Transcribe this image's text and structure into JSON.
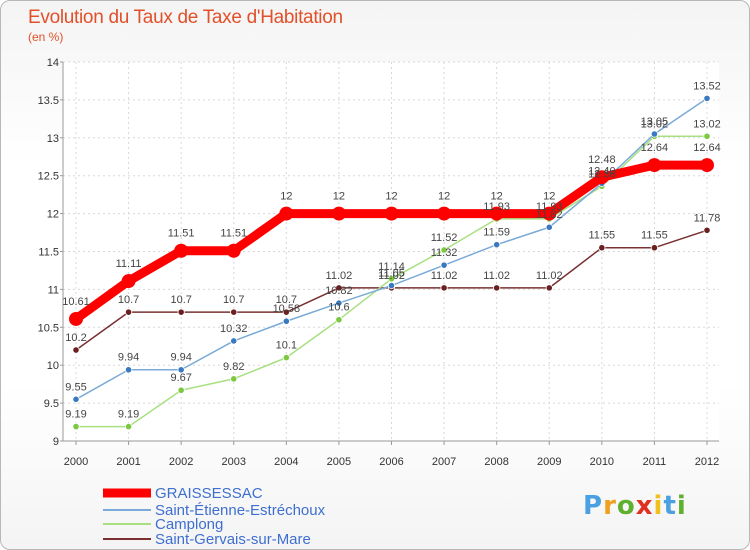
{
  "title": "Evolution du Taux de Taxe d'Habitation",
  "unit": "(en %)",
  "logo": {
    "text": "Proxiti",
    "letters": [
      "P",
      "r",
      "o",
      "x",
      "i",
      "t",
      "i"
    ],
    "colors": [
      "#4aa0e0",
      "#f0a020",
      "#60b030",
      "#e03020",
      "#f0c020",
      "#4aa0e0",
      "#60b030"
    ]
  },
  "chart_data": {
    "type": "line",
    "title": "Evolution du Taux de Taxe d'Habitation",
    "ylabel": "(en %)",
    "xlabel": "",
    "x": [
      "2000",
      "2001",
      "2002",
      "2003",
      "2004",
      "2005",
      "2006",
      "2007",
      "2008",
      "2009",
      "2010",
      "2011",
      "2012"
    ],
    "ylim": [
      9,
      14
    ],
    "yticks": [
      "9",
      "9.5",
      "10",
      "10.5",
      "11",
      "11.5",
      "12",
      "12.5",
      "13",
      "13.5",
      "14"
    ],
    "grid": true,
    "legend_position": "bottom-left",
    "series": [
      {
        "name": "GRAISSESSAC",
        "color": "#ff0000",
        "values": [
          10.61,
          11.11,
          11.51,
          11.51,
          12,
          12,
          12,
          12,
          12,
          12,
          12.48,
          12.64,
          12.64
        ],
        "labels": [
          "10.61",
          "11.11",
          "11.51",
          "11.51",
          "12",
          "12",
          "12",
          "12",
          "12",
          "12",
          "12.48",
          "12.64",
          "12.64"
        ]
      },
      {
        "name": "Saint-Étienne-Estréchoux",
        "color": "#7aaad8",
        "marker": "#3a78c0",
        "values": [
          9.55,
          9.94,
          9.94,
          10.32,
          10.58,
          10.82,
          11.05,
          11.32,
          11.59,
          11.82,
          12.4,
          13.05,
          13.52
        ],
        "labels": [
          "9.55",
          "9.94",
          "9.94",
          "10.32",
          "10.58",
          "10.82",
          "11.05",
          "11.32",
          "11.59",
          "11.82",
          "12.40",
          "13.05",
          "13.52"
        ]
      },
      {
        "name": "Camplong",
        "color": "#a8e080",
        "marker": "#7cc840",
        "values": [
          9.19,
          9.19,
          9.67,
          9.82,
          10.1,
          10.6,
          11.14,
          11.52,
          11.93,
          11.93,
          12.36,
          13.02,
          13.02
        ],
        "labels": [
          "9.19",
          "9.19",
          "9.67",
          "9.82",
          "10.1",
          "10.6",
          "11.14",
          "11.52",
          "11.93",
          "11.93",
          "12.36",
          "13.02",
          "13.02"
        ]
      },
      {
        "name": "Saint-Gervais-sur-Mare",
        "color": "#7a3030",
        "marker": "#6a2020",
        "values": [
          10.2,
          10.7,
          10.7,
          10.7,
          10.7,
          11.02,
          11.02,
          11.02,
          11.02,
          11.02,
          11.55,
          11.55,
          11.78
        ],
        "labels": [
          "10.2",
          "10.7",
          "10.7",
          "10.7",
          "10.7",
          "11.02",
          "11.02",
          "11.02",
          "11.02",
          "11.02",
          "11.55",
          "11.55",
          "11.78"
        ]
      }
    ]
  }
}
